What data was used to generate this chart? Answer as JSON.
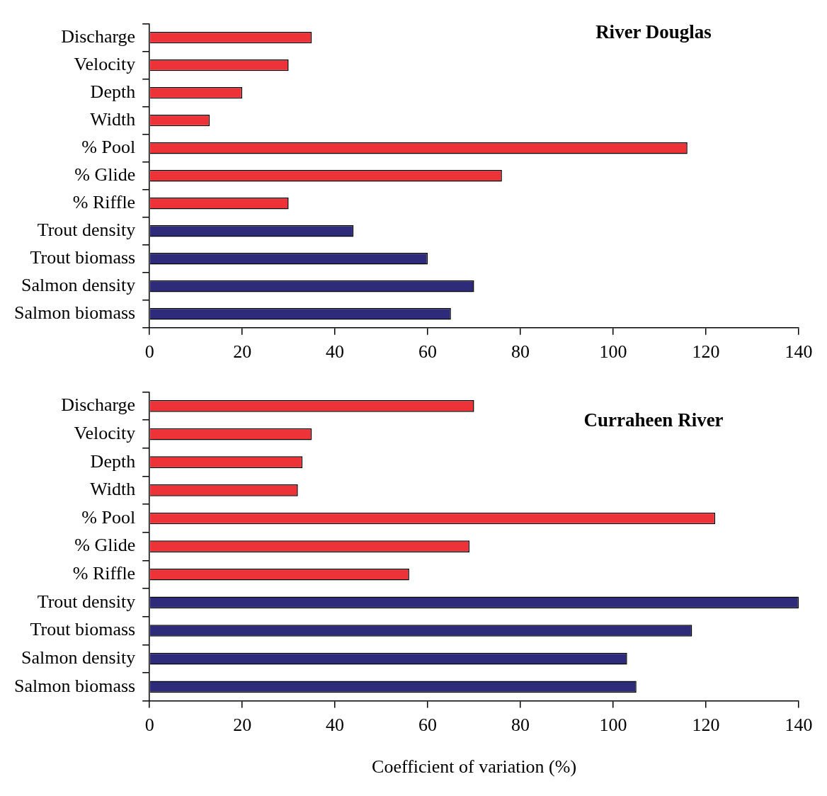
{
  "chart_data": [
    {
      "type": "bar",
      "orientation": "horizontal",
      "title": "River Douglas",
      "categories": [
        "Discharge",
        "Velocity",
        "Depth",
        "Width",
        "% Pool",
        "% Glide",
        "% Riffle",
        "Trout density",
        "Trout biomass",
        "Salmon density",
        "Salmon biomass"
      ],
      "values": [
        35,
        30,
        20,
        13,
        116,
        76,
        30,
        44,
        60,
        70,
        65
      ],
      "colors": [
        "#ee3338",
        "#ee3338",
        "#ee3338",
        "#ee3338",
        "#ee3338",
        "#ee3338",
        "#ee3338",
        "#2e2c7a",
        "#2e2c7a",
        "#2e2c7a",
        "#2e2c7a"
      ],
      "xlim": [
        0,
        140
      ],
      "xticks": [
        0,
        20,
        40,
        60,
        80,
        100,
        120,
        140
      ],
      "grid": false,
      "legend": false
    },
    {
      "type": "bar",
      "orientation": "horizontal",
      "title": "Curraheen River",
      "xlabel": "Coefficient of variation (%)",
      "categories": [
        "Discharge",
        "Velocity",
        "Depth",
        "Width",
        "% Pool",
        "% Glide",
        "% Riffle",
        "Trout density",
        "Trout biomass",
        "Salmon density",
        "Salmon biomass"
      ],
      "values": [
        70,
        35,
        33,
        32,
        122,
        69,
        56,
        140,
        117,
        103,
        105
      ],
      "colors": [
        "#ee3338",
        "#ee3338",
        "#ee3338",
        "#ee3338",
        "#ee3338",
        "#ee3338",
        "#ee3338",
        "#2e2c7a",
        "#2e2c7a",
        "#2e2c7a",
        "#2e2c7a"
      ],
      "xlim": [
        0,
        140
      ],
      "xticks": [
        0,
        20,
        40,
        60,
        80,
        100,
        120,
        140
      ],
      "grid": false,
      "legend": false
    }
  ]
}
